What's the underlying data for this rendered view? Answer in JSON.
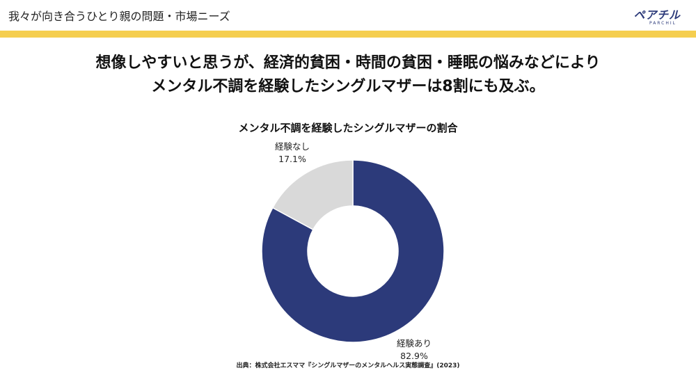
{
  "header": {
    "title": "我々が向き合うひとり親の問題・市場ニーズ",
    "logo_text": "ペアチル",
    "logo_sub": "PARCHIL"
  },
  "headline": {
    "line1": "想像しやすいと思うが、経済的貧困・時間の貧困・睡眠の悩みなどにより",
    "line2": "メンタル不調を経験したシングルマザーは8割にも及ぶ。"
  },
  "colors": {
    "accent_band": "#f5ce4f",
    "series_yes": "#2c3a7a",
    "series_no": "#d9d9d9",
    "brand": "#2c3a7a"
  },
  "chart_data": {
    "type": "pie",
    "title": "メンタル不調を経験したシングルマザーの割合",
    "donut": true,
    "slices": [
      {
        "label": "経験あり",
        "value": 82.9,
        "display": "82.9%",
        "color": "#2c3a7a"
      },
      {
        "label": "経験なし",
        "value": 17.1,
        "display": "17.1%",
        "color": "#d9d9d9"
      }
    ]
  },
  "source": "出典：株式会社エスママ『シングルマザーのメンタルヘルス実態調査』(2023)"
}
